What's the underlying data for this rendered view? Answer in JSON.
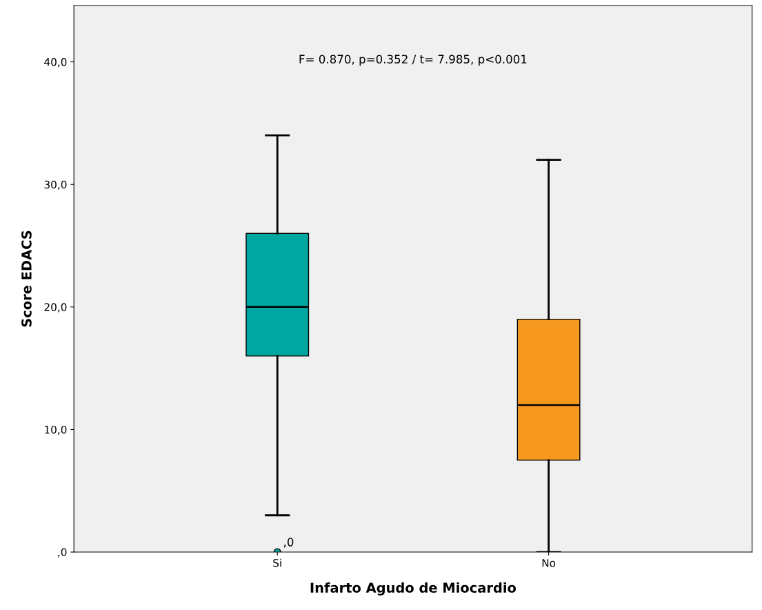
{
  "chart_data": {
    "type": "box",
    "xlabel": "Infarto Agudo de Miocardio",
    "ylabel": "Score EDACS",
    "categories": [
      "Si",
      "No"
    ],
    "colors": [
      "#00a6a0",
      "#f7991f"
    ],
    "boxes": [
      {
        "low": 3,
        "q1": 16,
        "median": 20,
        "q3": 26,
        "high": 34,
        "outliers": [
          0
        ]
      },
      {
        "low": 0,
        "q1": 7.5,
        "median": 12,
        "q3": 19,
        "high": 32
      }
    ],
    "ylim": [
      0,
      44.6
    ],
    "yticks": [
      {
        "value": 0,
        "label": ",0"
      },
      {
        "value": 10,
        "label": "10,0"
      },
      {
        "value": 20,
        "label": "20,0"
      },
      {
        "value": 30,
        "label": "30,0"
      },
      {
        "value": 40,
        "label": "40,0"
      }
    ],
    "annotations": [
      "F= 0.870, p=0.352 / t= 7.985, p<0.001",
      ",0"
    ],
    "grid": false,
    "legend": false
  }
}
